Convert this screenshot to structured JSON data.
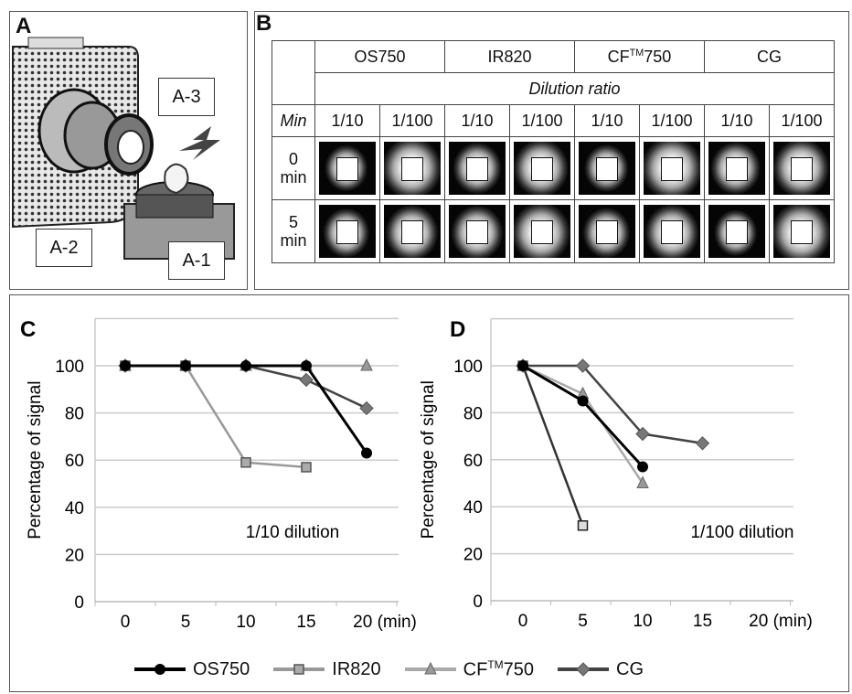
{
  "panelA": {
    "label": "A",
    "callouts": [
      "A-1",
      "A-2",
      "A-3"
    ]
  },
  "panelB": {
    "label": "B",
    "dyes": [
      "OS750",
      "IR820",
      "CF™750",
      "CG"
    ],
    "dilution_header": "Dilution ratio",
    "min_header": "Min",
    "ratios": [
      "1/10",
      "1/100",
      "1/10",
      "1/100",
      "1/10",
      "1/100",
      "1/10",
      "1/100"
    ],
    "rows": [
      {
        "time": "0",
        "unit": "min"
      },
      {
        "time": "5",
        "unit": "min"
      }
    ]
  },
  "chart_data": [
    {
      "panel": "C",
      "type": "line",
      "title": "",
      "annotation": "1/10 dilution",
      "ylabel": "Percentage of signal",
      "xlabel": "(min)",
      "categories": [
        "0",
        "5",
        "10",
        "15",
        "20"
      ],
      "x_tick_labels": [
        "0",
        "5",
        "10",
        "15",
        "20 (min)"
      ],
      "y_ticks": [
        0,
        20,
        40,
        60,
        80,
        100
      ],
      "ylim": [
        0,
        120
      ],
      "grid": true,
      "series": [
        {
          "name": "OS750",
          "values": [
            100,
            100,
            100,
            100,
            63
          ]
        },
        {
          "name": "IR820",
          "values": [
            100,
            100,
            59,
            57,
            null
          ]
        },
        {
          "name": "CF™750",
          "values": [
            100,
            100,
            100,
            100,
            100
          ]
        },
        {
          "name": "CG",
          "values": [
            100,
            100,
            100,
            94,
            82
          ]
        }
      ]
    },
    {
      "panel": "D",
      "type": "line",
      "title": "",
      "annotation": "1/100 dilution",
      "ylabel": "Percentage of signal",
      "xlabel": "(min)",
      "categories": [
        "0",
        "5",
        "10",
        "15",
        "20"
      ],
      "x_tick_labels": [
        "0",
        "5",
        "10",
        "15",
        "20 (min)"
      ],
      "y_ticks": [
        0,
        20,
        40,
        60,
        80,
        100
      ],
      "ylim": [
        0,
        120
      ],
      "grid": true,
      "series": [
        {
          "name": "OS750",
          "values": [
            100,
            85,
            57,
            null,
            null
          ]
        },
        {
          "name": "IR820",
          "values": [
            100,
            32,
            null,
            null,
            null
          ]
        },
        {
          "name": "CF™750",
          "values": [
            100,
            88,
            50,
            null,
            null
          ]
        },
        {
          "name": "CG",
          "values": [
            100,
            100,
            71,
            67,
            null
          ]
        }
      ]
    }
  ],
  "legend": {
    "placement": "bottom",
    "items": [
      "OS750",
      "IR820",
      "CF™750",
      "CG"
    ]
  },
  "colors": {
    "OS750": "#000000",
    "IR820": "#9a9a9a",
    "CF750": "#8a8a8a",
    "CG": "#4a4a4a",
    "grid": "#cccccc"
  }
}
